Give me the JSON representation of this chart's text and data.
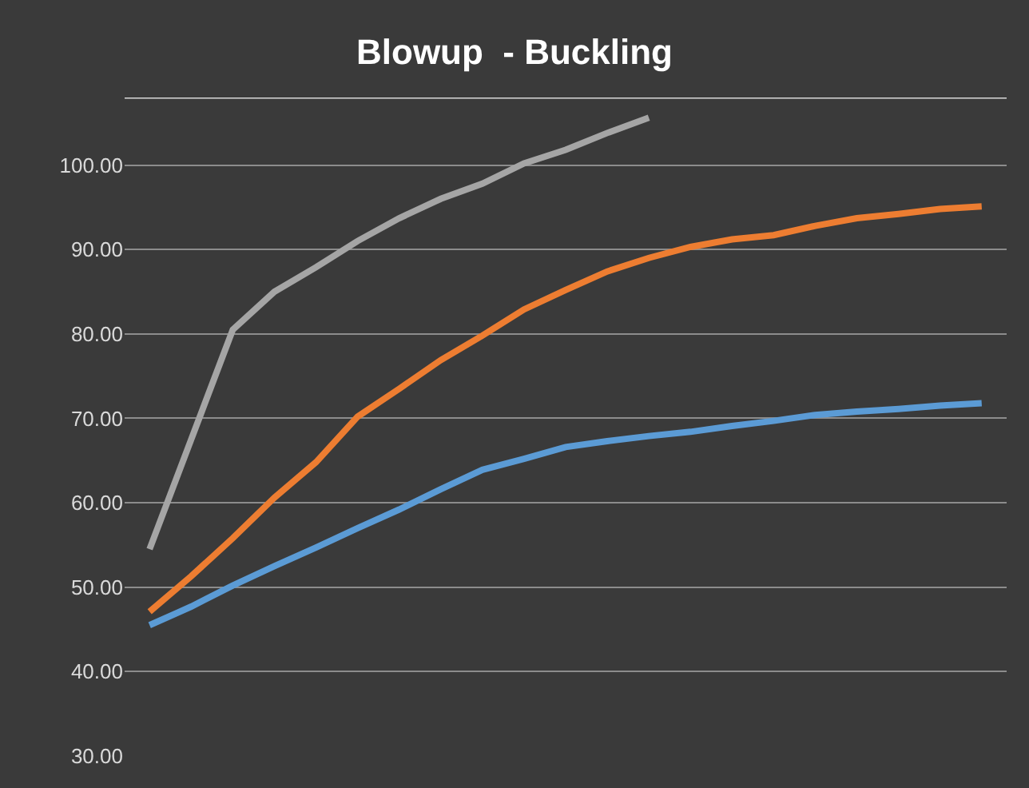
{
  "chart_data": {
    "type": "line",
    "title": "Blowup  - Buckling",
    "categories": [
      null,
      null,
      null,
      null,
      null,
      null,
      null,
      null,
      null,
      null,
      null,
      null,
      null,
      null,
      null,
      null,
      null,
      null,
      null,
      null,
      null
    ],
    "series": [
      {
        "color": "#5b9bd5",
        "values": [
          45.5,
          47.7,
          50.2,
          52.5,
          54.7,
          57.0,
          59.2,
          61.6,
          63.9,
          65.2,
          66.6,
          67.3,
          67.9,
          68.4,
          69.1,
          69.7,
          70.4,
          70.8,
          71.1,
          71.5,
          71.8
        ]
      },
      {
        "color": "#ed7d31",
        "values": [
          47.1,
          51.3,
          55.8,
          60.6,
          64.8,
          70.2,
          73.5,
          76.9,
          79.8,
          82.9,
          85.2,
          87.4,
          89.0,
          90.3,
          91.2,
          91.7,
          92.8,
          93.7,
          94.2,
          94.8,
          95.1
        ]
      },
      {
        "color": "#a5a5a5",
        "values": [
          54.5,
          67.5,
          80.5,
          85.0,
          87.9,
          91.0,
          93.7,
          96.0,
          97.8,
          100.2,
          101.8,
          103.8,
          105.6,
          null,
          null,
          null,
          null,
          null,
          null,
          null,
          null
        ]
      }
    ],
    "ylim": [
      30,
      108
    ],
    "yticks": [
      {
        "value": 30,
        "label": "30.00"
      },
      {
        "value": 40,
        "label": "40.00"
      },
      {
        "value": 50,
        "label": "50.00"
      },
      {
        "value": 60,
        "label": "60.00"
      },
      {
        "value": 70,
        "label": "70.00"
      },
      {
        "value": 80,
        "label": "80.00"
      },
      {
        "value": 90,
        "label": "90.00"
      },
      {
        "value": 100,
        "label": "100.00"
      }
    ],
    "grid": "y",
    "line_style": "solid",
    "marker": "none"
  }
}
